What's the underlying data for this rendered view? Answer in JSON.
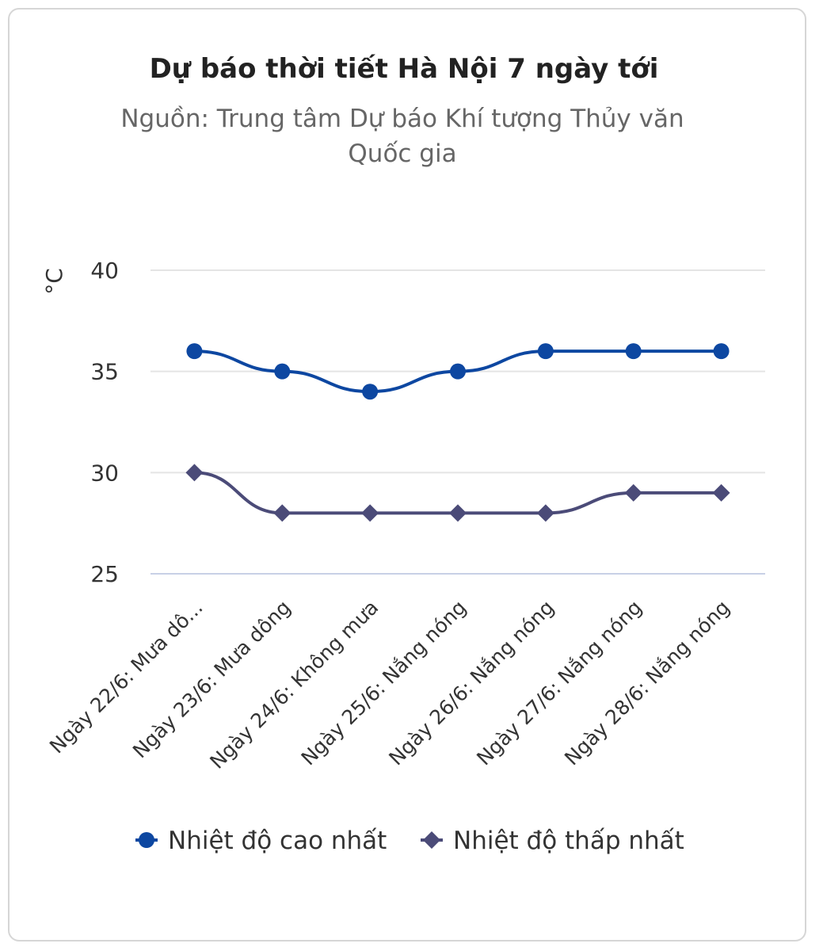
{
  "chart_data": {
    "type": "line",
    "title": "Dự báo thời tiết Hà Nội 7 ngày tới",
    "subtitle_lines": [
      "Nguồn: Trung tâm Dự báo Khí tượng Thủy văn",
      "Quốc gia"
    ],
    "ylabel": "°C",
    "xlabel": "",
    "ylim": [
      25,
      40
    ],
    "yticks": [
      25,
      30,
      35,
      40
    ],
    "grid": true,
    "legend_position": "bottom",
    "categories": [
      "Ngày 22/6: Mưa dô...",
      "Ngày 23/6: Mưa dông",
      "Ngày 24/6: Không mưa",
      "Ngày 25/6: Nắng nóng",
      "Ngày 26/6: Nắng nóng",
      "Ngày 27/6: Nắng nóng",
      "Ngày 28/6: Nắng nóng"
    ],
    "series": [
      {
        "name": "Nhiệt độ cao nhất",
        "values": [
          36,
          35,
          34,
          35,
          36,
          36,
          36
        ],
        "color": "#0d47a1",
        "marker": "circle"
      },
      {
        "name": "Nhiệt độ thấp nhất",
        "values": [
          30,
          28,
          28,
          28,
          28,
          29,
          29
        ],
        "color": "#4b4b78",
        "marker": "diamond"
      }
    ]
  }
}
